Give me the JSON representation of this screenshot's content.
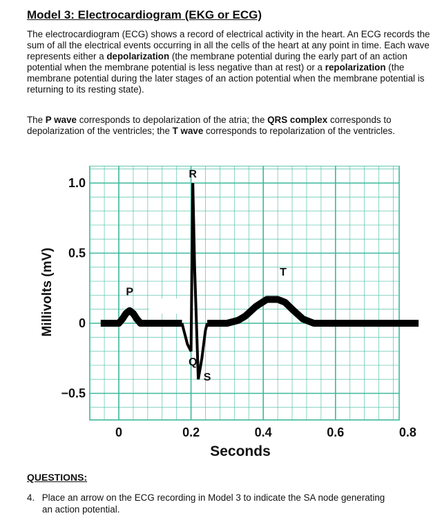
{
  "document": {
    "title": "Model 3: Electrocardiogram (EKG or ECG)",
    "para1": [
      {
        "t": "The electrocardiogram (ECG) shows a record of electrical activity in the heart. An ECG records the sum of all the electrical events occurring in all the cells of the heart at any point in time. Each wave represents either a ",
        "b": false
      },
      {
        "t": "depolarization",
        "b": true
      },
      {
        "t": " (the membrane potential during the early part of an action potential when the membrane potential is less negative than at rest) or a ",
        "b": false
      },
      {
        "t": "repolarization",
        "b": true
      },
      {
        "t": " (the membrane potential during the later stages of an action potential when the membrane potential is returning to its resting state).",
        "b": false
      }
    ],
    "para2": [
      {
        "t": "The ",
        "b": false
      },
      {
        "t": "P wave",
        "b": true
      },
      {
        "t": " corresponds to depolarization of the atria; the ",
        "b": false
      },
      {
        "t": "QRS complex",
        "b": true
      },
      {
        "t": " corresponds to depolarization of the ventricles; the ",
        "b": false
      },
      {
        "t": "T wave",
        "b": true
      },
      {
        "t": " corresponds to repolarization of the ventricles.",
        "b": false
      }
    ]
  },
  "chart_data": {
    "type": "line",
    "ylabel": "Millivolts (mV)",
    "xlabel": "Seconds",
    "x_ticks": [
      "0",
      "0.2",
      "0.4",
      "0.6",
      "0.8"
    ],
    "y_ticks": [
      "1.0",
      "0.5",
      "0",
      "-0.5"
    ],
    "xlim": [
      -0.05,
      0.83
    ],
    "ylim": [
      -0.6,
      1.05
    ],
    "grid": true,
    "colors": {
      "grid": "#3cb89b",
      "trace": "#000000"
    },
    "wave_labels": [
      {
        "label": "P",
        "x": 0.03,
        "y": 0.2
      },
      {
        "label": "R",
        "x": 0.205,
        "y": 1.04
      },
      {
        "label": "Q",
        "x": 0.205,
        "y": -0.3
      },
      {
        "label": "S",
        "x": 0.245,
        "y": -0.41
      },
      {
        "label": "T",
        "x": 0.455,
        "y": 0.34
      }
    ],
    "series": [
      {
        "x": [
          -0.05,
          0.0,
          0.01,
          0.02,
          0.03,
          0.04,
          0.05,
          0.06,
          0.07,
          0.08,
          0.13,
          0.175,
          0.19,
          0.2,
          0.205,
          0.21,
          0.22,
          0.23,
          0.235,
          0.24,
          0.245,
          0.26,
          0.27,
          0.3,
          0.33,
          0.35,
          0.38,
          0.41,
          0.44,
          0.46,
          0.48,
          0.51,
          0.54,
          0.57,
          0.6,
          0.83
        ],
        "y": [
          0.0,
          0.0,
          0.03,
          0.07,
          0.09,
          0.07,
          0.03,
          0.0,
          0.0,
          0.0,
          0.0,
          0.0,
          -0.15,
          -0.2,
          1.0,
          0.4,
          -0.4,
          -0.25,
          -0.15,
          -0.05,
          0.0,
          0.0,
          0.0,
          0.0,
          0.02,
          0.05,
          0.12,
          0.17,
          0.17,
          0.15,
          0.1,
          0.03,
          0.0,
          0.0,
          0.0,
          0.0
        ]
      }
    ]
  },
  "questions": {
    "heading": "QUESTIONS:",
    "q4_number": "4.",
    "q4_line1": "Place an arrow on the ECG recording in Model 3 to indicate the SA node generating",
    "q4_line2": "an action potential."
  }
}
